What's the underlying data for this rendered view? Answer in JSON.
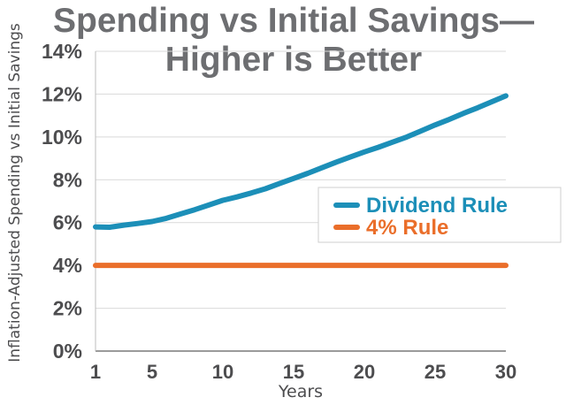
{
  "chart_data": {
    "type": "line",
    "title_line1": "Spending vs Initial Savings—",
    "title_line2": "Higher is Better",
    "xlabel": "Years",
    "ylabel": "Inflation-Adjusted Spending vs Initial Savings",
    "xlim": [
      1,
      30
    ],
    "ylim": [
      0,
      14
    ],
    "x_ticks": [
      {
        "value": 1,
        "label": "1"
      },
      {
        "value": 5,
        "label": "5"
      },
      {
        "value": 10,
        "label": "10"
      },
      {
        "value": 15,
        "label": "15"
      },
      {
        "value": 20,
        "label": "20"
      },
      {
        "value": 25,
        "label": "25"
      },
      {
        "value": 30,
        "label": "30"
      }
    ],
    "y_ticks": [
      {
        "value": 0,
        "label": "0%"
      },
      {
        "value": 2,
        "label": "2%"
      },
      {
        "value": 4,
        "label": "4%"
      },
      {
        "value": 6,
        "label": "6%"
      },
      {
        "value": 8,
        "label": "8%"
      },
      {
        "value": 10,
        "label": "10%"
      },
      {
        "value": 12,
        "label": "12%"
      },
      {
        "value": 14,
        "label": "14%"
      }
    ],
    "grid": true,
    "legend_position": "right",
    "series": [
      {
        "name": "Dividend Rule",
        "color": "#1c8fb8",
        "x": [
          1,
          2,
          3,
          4,
          5,
          6,
          7,
          8,
          9,
          10,
          11,
          12,
          13,
          14,
          15,
          16,
          17,
          18,
          19,
          20,
          21,
          22,
          23,
          24,
          25,
          26,
          27,
          28,
          29,
          30
        ],
        "y": [
          5.8,
          5.78,
          5.88,
          5.96,
          6.05,
          6.2,
          6.4,
          6.6,
          6.82,
          7.04,
          7.2,
          7.38,
          7.58,
          7.82,
          8.06,
          8.3,
          8.56,
          8.82,
          9.06,
          9.3,
          9.52,
          9.76,
          10.0,
          10.28,
          10.56,
          10.82,
          11.1,
          11.36,
          11.64,
          11.92
        ]
      },
      {
        "name": "4% Rule",
        "color": "#ea6e2a",
        "x": [
          1,
          30
        ],
        "y": [
          4.0,
          4.0
        ]
      }
    ]
  }
}
